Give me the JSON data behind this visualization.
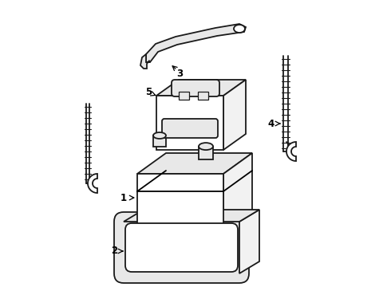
{
  "background_color": "#ffffff",
  "line_color": "#1a1a1a",
  "line_width": 1.3,
  "fill_light": "#e8e8e8",
  "fill_lighter": "#f2f2f2",
  "fill_white": "#ffffff"
}
